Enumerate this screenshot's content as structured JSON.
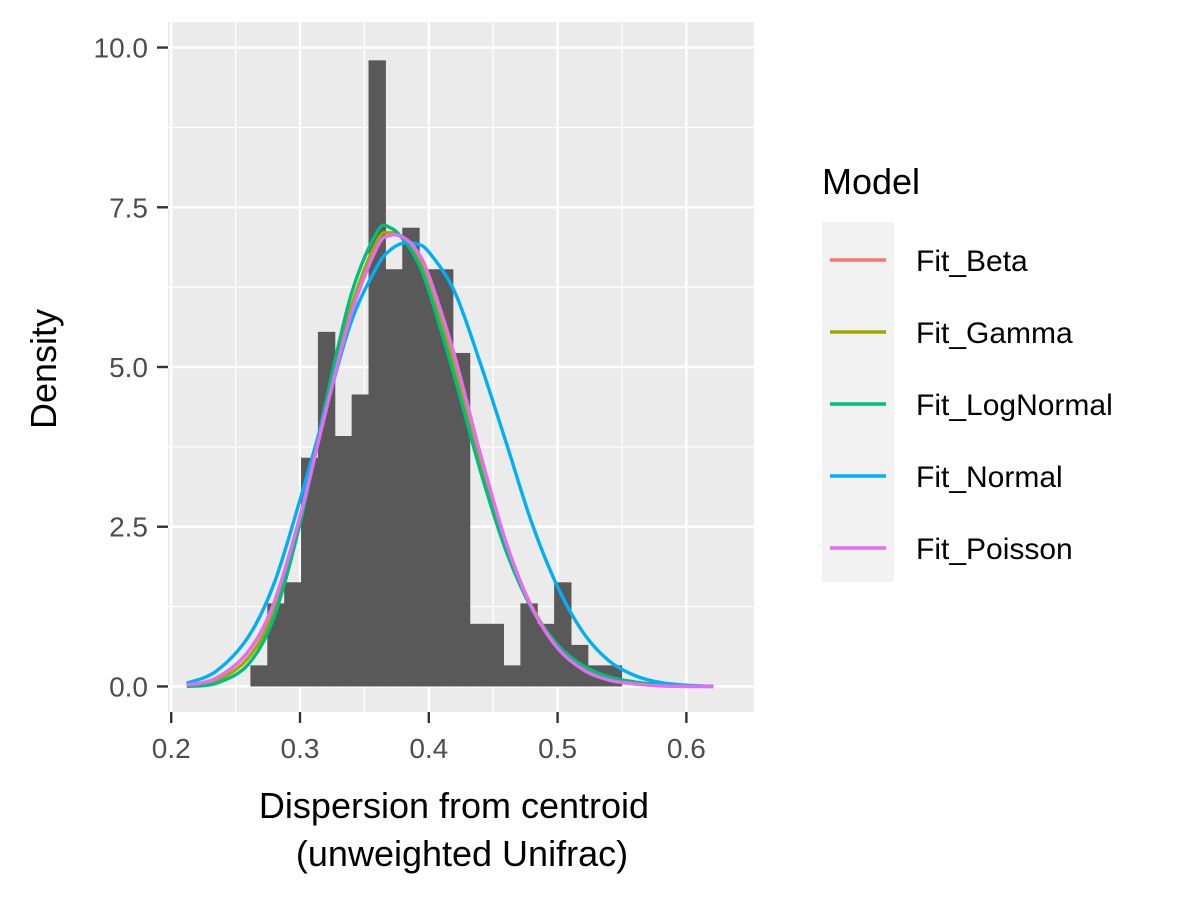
{
  "chart_data": {
    "type": "histogram",
    "xlabel_line1": "Dispersion from centroid",
    "xlabel_line2": "(unweighted Unifrac)",
    "ylabel": "Density",
    "xlim": [
      0.1975,
      0.6525
    ],
    "ylim": [
      -0.4,
      10.4
    ],
    "x_ticks": [
      0.2,
      0.3,
      0.4,
      0.5,
      0.6
    ],
    "x_tick_labels": [
      "0.2",
      "0.3",
      "0.4",
      "0.5",
      "0.6"
    ],
    "y_ticks": [
      0.0,
      2.5,
      5.0,
      7.5,
      10.0
    ],
    "y_tick_labels": [
      "0.0",
      "2.5",
      "5.0",
      "7.5",
      "10.0"
    ],
    "histogram": {
      "bin_width": 0.0131,
      "bins": [
        {
          "x0": 0.2615,
          "density": 0.33
        },
        {
          "x0": 0.2746,
          "density": 1.3
        },
        {
          "x0": 0.2877,
          "density": 1.63
        },
        {
          "x0": 0.3008,
          "density": 3.58
        },
        {
          "x0": 0.3139,
          "density": 5.55
        },
        {
          "x0": 0.327,
          "density": 3.92
        },
        {
          "x0": 0.3401,
          "density": 4.57
        },
        {
          "x0": 0.3532,
          "density": 9.8
        },
        {
          "x0": 0.3663,
          "density": 6.53
        },
        {
          "x0": 0.3794,
          "density": 7.18
        },
        {
          "x0": 0.3925,
          "density": 6.53
        },
        {
          "x0": 0.4056,
          "density": 6.53
        },
        {
          "x0": 0.4187,
          "density": 5.22
        },
        {
          "x0": 0.4318,
          "density": 0.98
        },
        {
          "x0": 0.4449,
          "density": 0.98
        },
        {
          "x0": 0.458,
          "density": 0.33
        },
        {
          "x0": 0.4711,
          "density": 1.3
        },
        {
          "x0": 0.4842,
          "density": 0.98
        },
        {
          "x0": 0.4973,
          "density": 1.63
        },
        {
          "x0": 0.5104,
          "density": 0.65
        },
        {
          "x0": 0.5235,
          "density": 0.33
        },
        {
          "x0": 0.5366,
          "density": 0.33
        }
      ],
      "color": "#595959"
    },
    "x_range_curves": [
      0.212,
      0.621
    ],
    "series": [
      {
        "name": "Fit_Beta",
        "color": "#F8766D",
        "x": [
          0.212,
          0.235,
          0.26,
          0.28,
          0.3,
          0.32,
          0.34,
          0.36,
          0.37,
          0.38,
          0.39,
          0.4,
          0.42,
          0.44,
          0.46,
          0.48,
          0.5,
          0.52,
          0.54,
          0.56,
          0.58,
          0.6,
          0.621
        ],
        "y": [
          0.02,
          0.13,
          0.55,
          1.32,
          2.66,
          4.31,
          5.85,
          6.88,
          7.06,
          7.03,
          6.84,
          6.43,
          5.17,
          3.64,
          2.25,
          1.24,
          0.6,
          0.26,
          0.1,
          0.04,
          0.01,
          0.0,
          0.0
        ]
      },
      {
        "name": "Fit_Gamma",
        "color": "#A3A500",
        "x": [
          0.212,
          0.235,
          0.26,
          0.28,
          0.3,
          0.32,
          0.34,
          0.36,
          0.37,
          0.38,
          0.39,
          0.4,
          0.42,
          0.44,
          0.46,
          0.48,
          0.5,
          0.52,
          0.54,
          0.56,
          0.58,
          0.6,
          0.621
        ],
        "y": [
          0.01,
          0.09,
          0.45,
          1.2,
          2.6,
          4.35,
          5.95,
          6.98,
          7.1,
          7.02,
          6.78,
          6.32,
          5.02,
          3.52,
          2.2,
          1.25,
          0.64,
          0.3,
          0.13,
          0.05,
          0.02,
          0.01,
          0.0
        ]
      },
      {
        "name": "Fit_LogNormal",
        "color": "#00BF7D",
        "x": [
          0.212,
          0.235,
          0.26,
          0.28,
          0.3,
          0.32,
          0.34,
          0.36,
          0.37,
          0.38,
          0.39,
          0.4,
          0.42,
          0.44,
          0.46,
          0.48,
          0.5,
          0.52,
          0.54,
          0.56,
          0.58,
          0.6,
          0.621
        ],
        "y": [
          0.0,
          0.05,
          0.35,
          1.1,
          2.55,
          4.45,
          6.15,
          7.12,
          7.18,
          7.0,
          6.7,
          6.2,
          4.85,
          3.38,
          2.12,
          1.22,
          0.65,
          0.32,
          0.15,
          0.07,
          0.03,
          0.01,
          0.0
        ]
      },
      {
        "name": "Fit_Normal",
        "color": "#00B0F6",
        "x": [
          0.212,
          0.235,
          0.26,
          0.28,
          0.3,
          0.32,
          0.34,
          0.36,
          0.37,
          0.38,
          0.39,
          0.4,
          0.42,
          0.44,
          0.46,
          0.48,
          0.5,
          0.52,
          0.54,
          0.56,
          0.58,
          0.6,
          0.621
        ],
        "y": [
          0.05,
          0.24,
          0.78,
          1.62,
          2.92,
          4.34,
          5.72,
          6.58,
          6.83,
          6.94,
          6.93,
          6.8,
          6.18,
          5.06,
          3.82,
          2.56,
          1.56,
          0.84,
          0.4,
          0.17,
          0.06,
          0.02,
          0.0
        ]
      },
      {
        "name": "Fit_Poisson",
        "color": "#E76BF3",
        "x": [
          0.212,
          0.235,
          0.26,
          0.28,
          0.3,
          0.32,
          0.34,
          0.36,
          0.37,
          0.38,
          0.39,
          0.4,
          0.42,
          0.44,
          0.46,
          0.48,
          0.5,
          0.52,
          0.54,
          0.56,
          0.58,
          0.6,
          0.621
        ],
        "y": [
          0.02,
          0.13,
          0.55,
          1.32,
          2.66,
          4.31,
          5.85,
          6.88,
          7.06,
          7.03,
          6.84,
          6.43,
          5.17,
          3.64,
          2.25,
          1.24,
          0.6,
          0.26,
          0.1,
          0.04,
          0.01,
          0.0,
          0.0
        ]
      }
    ],
    "legend": {
      "title": "Model",
      "position": "right",
      "entries": [
        "Fit_Beta",
        "Fit_Gamma",
        "Fit_LogNormal",
        "Fit_Normal",
        "Fit_Poisson"
      ]
    },
    "panel_background": "#EBEBEB",
    "grid_color": "#FFFFFF",
    "grid": true
  }
}
